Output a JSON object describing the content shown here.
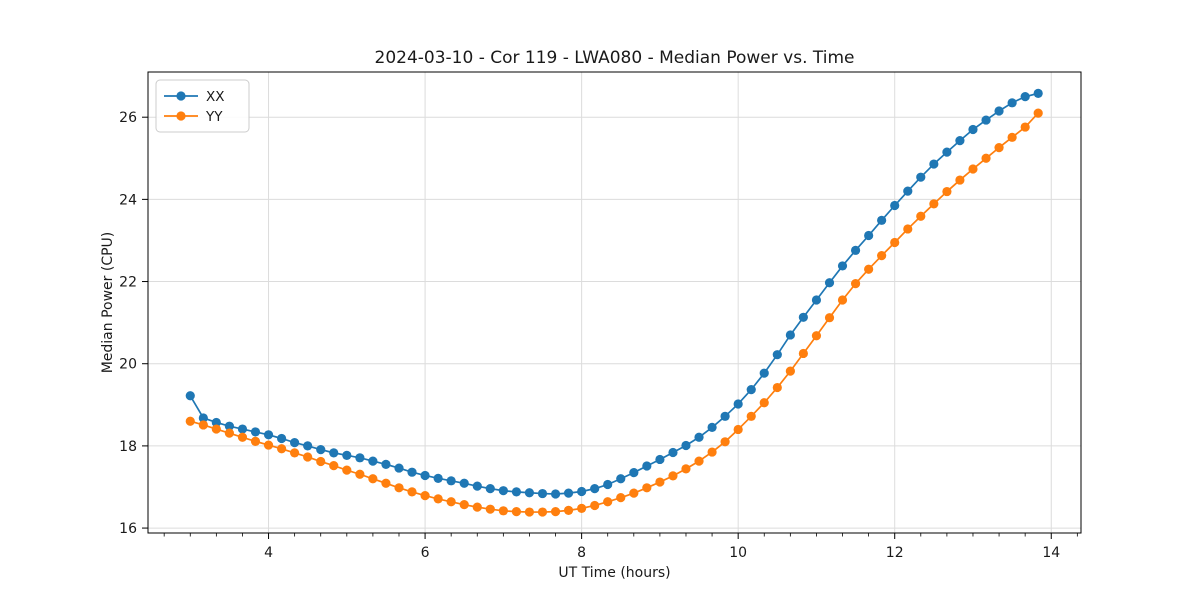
{
  "chart_data": {
    "type": "line",
    "title": "2024-03-10 - Cor 119 - LWA080 - Median Power vs. Time",
    "xlabel": "UT Time (hours)",
    "ylabel": "Median Power (CPU)",
    "xlim": [
      2.46,
      14.38
    ],
    "ylim": [
      15.88,
      27.1
    ],
    "xticks": [
      4,
      6,
      8,
      10,
      12,
      14
    ],
    "yticks": [
      16,
      18,
      20,
      22,
      24,
      26
    ],
    "x_minor_step": 0.33333,
    "grid": true,
    "grid_color": "#dcdcdc",
    "legend": {
      "position": "upper left",
      "entries": [
        "XX",
        "YY"
      ]
    },
    "x": [
      3.0,
      3.167,
      3.333,
      3.5,
      3.667,
      3.833,
      4.0,
      4.167,
      4.333,
      4.5,
      4.667,
      4.833,
      5.0,
      5.167,
      5.333,
      5.5,
      5.667,
      5.833,
      6.0,
      6.167,
      6.333,
      6.5,
      6.667,
      6.833,
      7.0,
      7.167,
      7.333,
      7.5,
      7.667,
      7.833,
      8.0,
      8.167,
      8.333,
      8.5,
      8.667,
      8.833,
      9.0,
      9.167,
      9.333,
      9.5,
      9.667,
      9.833,
      10.0,
      10.167,
      10.333,
      10.5,
      10.667,
      10.833,
      11.0,
      11.167,
      11.333,
      11.5,
      11.667,
      11.833,
      12.0,
      12.167,
      12.333,
      12.5,
      12.667,
      12.833,
      13.0,
      13.167,
      13.333,
      13.5,
      13.667,
      13.833
    ],
    "series": [
      {
        "name": "XX",
        "color": "#1f77b4",
        "values": [
          19.22,
          18.68,
          18.57,
          18.48,
          18.41,
          18.34,
          18.27,
          18.18,
          18.08,
          18.0,
          17.91,
          17.83,
          17.77,
          17.71,
          17.63,
          17.55,
          17.46,
          17.36,
          17.28,
          17.21,
          17.15,
          17.09,
          17.02,
          16.96,
          16.91,
          16.88,
          16.86,
          16.84,
          16.83,
          16.85,
          16.89,
          16.96,
          17.06,
          17.2,
          17.35,
          17.51,
          17.67,
          17.84,
          18.01,
          18.21,
          18.45,
          18.72,
          19.02,
          19.37,
          19.77,
          20.22,
          20.7,
          21.13,
          21.55,
          21.97,
          22.38,
          22.76,
          23.12,
          23.49,
          23.85,
          24.2,
          24.54,
          24.86,
          25.15,
          25.43,
          25.7,
          25.93,
          26.15,
          26.35,
          26.5,
          26.58
        ]
      },
      {
        "name": "YY",
        "color": "#ff7f0e",
        "values": [
          18.6,
          18.51,
          18.41,
          18.31,
          18.21,
          18.11,
          18.02,
          17.93,
          17.83,
          17.73,
          17.62,
          17.52,
          17.41,
          17.31,
          17.2,
          17.09,
          16.98,
          16.88,
          16.79,
          16.71,
          16.64,
          16.57,
          16.51,
          16.46,
          16.42,
          16.4,
          16.39,
          16.39,
          16.4,
          16.43,
          16.48,
          16.55,
          16.64,
          16.74,
          16.85,
          16.98,
          17.12,
          17.27,
          17.44,
          17.63,
          17.85,
          18.1,
          18.4,
          18.72,
          19.05,
          19.42,
          19.82,
          20.25,
          20.68,
          21.12,
          21.55,
          21.95,
          22.3,
          22.63,
          22.95,
          23.28,
          23.59,
          23.89,
          24.19,
          24.47,
          24.74,
          25.0,
          25.26,
          25.51,
          25.76,
          26.1
        ]
      }
    ]
  }
}
